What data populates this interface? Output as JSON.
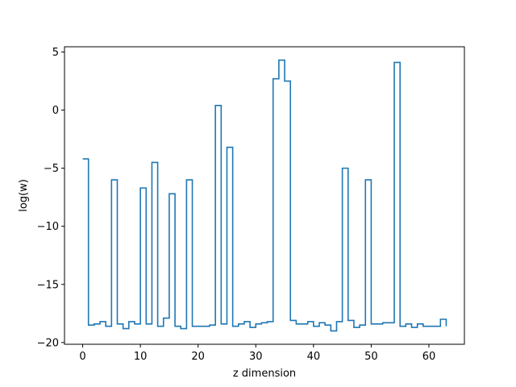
{
  "chart_data": {
    "type": "line",
    "step": "post",
    "title": "",
    "xlabel": "z dimension",
    "ylabel": "log(w)",
    "xlim": [
      -3.15,
      66.15
    ],
    "ylim": [
      -20.15,
      5.45
    ],
    "xticks": [
      0,
      10,
      20,
      30,
      40,
      50,
      60
    ],
    "yticks": [
      -20,
      -15,
      -10,
      -5,
      0,
      5
    ],
    "xtick_labels": [
      "0",
      "10",
      "20",
      "30",
      "40",
      "50",
      "60"
    ],
    "ytick_labels": [
      "−20",
      "−15",
      "−10",
      "−5",
      "0",
      "5"
    ],
    "grid": false,
    "color": "#1f77b4",
    "series": [
      {
        "x": [
          0,
          1,
          2,
          3,
          4,
          5,
          6,
          7,
          8,
          9,
          10,
          11,
          12,
          13,
          14,
          15,
          16,
          17,
          18,
          19,
          20,
          21,
          22,
          23,
          24,
          25,
          26,
          27,
          28,
          29,
          30,
          31,
          32,
          33,
          34,
          35,
          36,
          37,
          38,
          39,
          40,
          41,
          42,
          43,
          44,
          45,
          46,
          47,
          48,
          49,
          50,
          51,
          52,
          53,
          54,
          55,
          56,
          57,
          58,
          59,
          60,
          61,
          62,
          63
        ],
        "values": [
          -4.2,
          -18.5,
          -18.4,
          -18.2,
          -18.6,
          -6.0,
          -18.4,
          -18.8,
          -18.2,
          -18.4,
          -6.7,
          -18.4,
          -4.5,
          -18.6,
          -17.9,
          -7.2,
          -18.6,
          -18.8,
          -6.0,
          -18.6,
          -18.6,
          -18.6,
          -18.5,
          0.4,
          -18.4,
          -3.2,
          -18.6,
          -18.4,
          -18.2,
          -18.7,
          -18.4,
          -18.3,
          -18.2,
          2.7,
          4.3,
          2.5,
          -18.1,
          -18.4,
          -18.4,
          -18.2,
          -18.6,
          -18.3,
          -18.5,
          -19.0,
          -18.2,
          -5.0,
          -18.1,
          -18.7,
          -18.5,
          -6.0,
          -18.4,
          -18.4,
          -18.3,
          -18.3,
          4.1,
          -18.6,
          -18.4,
          -18.7,
          -18.4,
          -18.6,
          -18.6,
          -18.6,
          -18.0,
          -18.6
        ]
      }
    ]
  }
}
